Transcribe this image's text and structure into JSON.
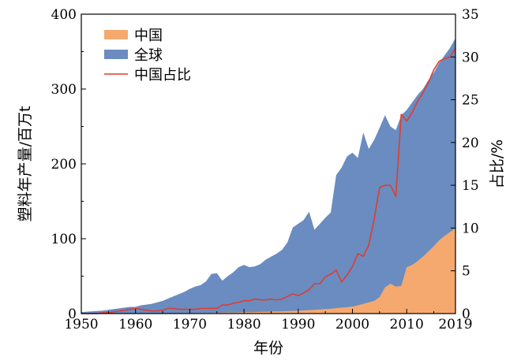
{
  "chart_data": {
    "type": "area",
    "x": [
      1950,
      1951,
      1952,
      1953,
      1954,
      1955,
      1956,
      1957,
      1958,
      1959,
      1960,
      1961,
      1962,
      1963,
      1964,
      1965,
      1966,
      1967,
      1968,
      1969,
      1970,
      1971,
      1972,
      1973,
      1974,
      1975,
      1976,
      1977,
      1978,
      1979,
      1980,
      1981,
      1982,
      1983,
      1984,
      1985,
      1986,
      1987,
      1988,
      1989,
      1990,
      1991,
      1992,
      1993,
      1994,
      1995,
      1996,
      1997,
      1998,
      1999,
      2000,
      2001,
      2002,
      2003,
      2004,
      2005,
      2006,
      2007,
      2008,
      2009,
      2010,
      2011,
      2012,
      2013,
      2014,
      2015,
      2016,
      2017,
      2018,
      2019
    ],
    "series": [
      {
        "name": "全球",
        "axis": "left",
        "color": "#6a8cc0",
        "values": [
          2,
          2.5,
          3,
          3.5,
          4,
          5,
          6,
          7,
          8,
          9,
          9,
          11,
          12,
          13,
          15,
          17,
          20,
          23,
          26,
          29,
          33,
          36,
          38,
          43,
          53,
          54,
          44,
          50,
          55,
          62,
          65,
          62,
          63,
          66,
          72,
          76,
          80,
          85,
          95,
          115,
          120,
          125,
          136,
          112,
          120,
          128,
          135,
          185,
          195,
          210,
          215,
          208,
          242,
          220,
          232,
          248,
          265,
          250,
          245,
          265,
          272,
          282,
          292,
          300,
          312,
          322,
          335,
          345,
          355,
          368
        ],
        "values_note": "approx. read from gridlines"
      },
      {
        "name": "中国",
        "axis": "left",
        "color": "#f5a96e",
        "values": [
          0,
          0,
          0,
          0,
          0,
          0,
          0,
          0,
          0.1,
          0.1,
          0.1,
          0.2,
          0.2,
          0.3,
          0.3,
          0.4,
          0.4,
          0.5,
          0.5,
          0.6,
          0.7,
          0.8,
          0.9,
          1.0,
          1.1,
          1.2,
          1.3,
          1.4,
          1.5,
          1.6,
          1.8,
          1.9,
          2.0,
          2.2,
          2.4,
          2.6,
          2.8,
          3.0,
          3.3,
          3.5,
          3.8,
          4.2,
          4.6,
          5.0,
          5.5,
          6.0,
          6.5,
          7.2,
          8.0,
          8.6,
          9.5,
          11,
          13,
          15,
          17,
          22,
          35,
          40,
          36,
          37,
          62,
          65,
          70,
          76,
          83,
          90,
          98,
          104,
          109,
          114
        ]
      },
      {
        "name": "中国占比",
        "axis": "right",
        "color": "#e03c31",
        "values": [
          0,
          0,
          0,
          0,
          0.1,
          0.1,
          0.2,
          0.3,
          0.4,
          0.5,
          0.6,
          0.5,
          0.4,
          0.3,
          0.3,
          0.4,
          0.6,
          0.6,
          0.5,
          0.5,
          0.5,
          0.5,
          0.6,
          0.6,
          0.6,
          0.6,
          1.0,
          1.0,
          1.2,
          1.3,
          1.5,
          1.5,
          1.7,
          1.6,
          1.6,
          1.7,
          1.6,
          1.7,
          2.0,
          2.3,
          2.1,
          2.4,
          2.8,
          3.5,
          3.5,
          4.3,
          4.6,
          5.1,
          3.7,
          4.5,
          5.5,
          7.0,
          6.7,
          8.0,
          11.0,
          14.7,
          15.0,
          15.0,
          13.7,
          23.3,
          22.5,
          23.5,
          24.8,
          25.8,
          27.0,
          28.5,
          29.5,
          29.8,
          30.0,
          31.0
        ]
      }
    ],
    "x_ticks": [
      "1950",
      "1960",
      "1970",
      "1980",
      "1990",
      "2000",
      "2010",
      "2019"
    ],
    "y_ticks_left": [
      "0",
      "100",
      "200",
      "300",
      "400"
    ],
    "y_ticks_right": [
      "0",
      "5",
      "10",
      "15",
      "20",
      "25",
      "30",
      "35"
    ],
    "xlim": [
      1950,
      2019
    ],
    "ylim_left": [
      0,
      400
    ],
    "ylim_right": [
      0,
      35
    ],
    "xlabel": "年份",
    "ylabel_left": "塑料年产量/百万t",
    "ylabel_right": "占比/%",
    "legend": {
      "placement": "top-left",
      "entries": [
        "中国",
        "全球",
        "中国占比"
      ]
    },
    "grid": false
  }
}
